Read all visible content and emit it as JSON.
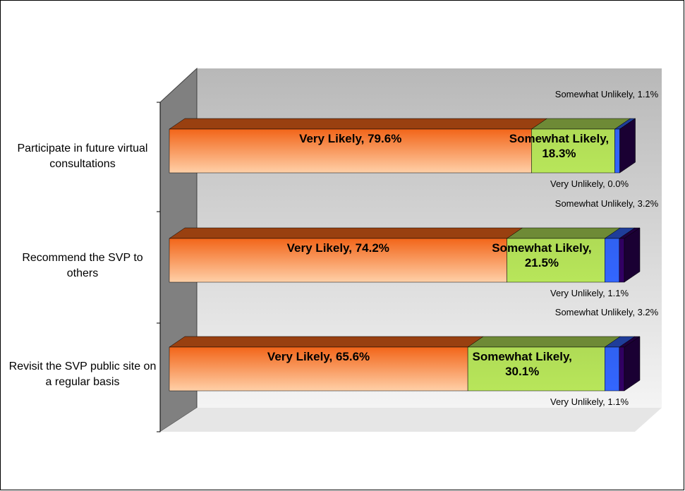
{
  "chart_data": {
    "type": "bar3d_stacked_horizontal",
    "categories": [
      "Participate in future virtual consultations",
      "Recommend the SVP to others",
      "Revisit the SVP public site on a regular basis"
    ],
    "xlim": [
      0,
      100
    ],
    "series": [
      {
        "name": "Very Likely",
        "color": "#ff6a1a",
        "values": [
          79.6,
          74.2,
          65.6
        ],
        "value_labels": [
          "Very Likely, 79.6%",
          "Very Likely, 74.2%",
          "Very Likely, 65.6%"
        ]
      },
      {
        "name": "Somewhat Likely",
        "color": "#b8e65a",
        "values": [
          18.3,
          21.5,
          30.1
        ],
        "value_labels": [
          "Somewhat Likely, 18.3%",
          "Somewhat Likely, 21.5%",
          "Somewhat Likely, 30.1%"
        ]
      },
      {
        "name": "Somewhat Unlikely",
        "color": "#3366ff",
        "values": [
          1.1,
          3.2,
          3.2
        ],
        "value_labels": [
          "Somewhat Unlikely, 1.1%",
          "Somewhat Unlikely, 3.2%",
          "Somewhat Unlikely, 3.2%"
        ]
      },
      {
        "name": "Very Unlikely",
        "color": "#330066",
        "values": [
          0.0,
          1.1,
          1.1
        ],
        "value_labels": [
          "Very Unlikely, 0.0%",
          "Very Unlikely, 1.1%",
          "Very Unlikely, 1.1%"
        ]
      }
    ]
  }
}
